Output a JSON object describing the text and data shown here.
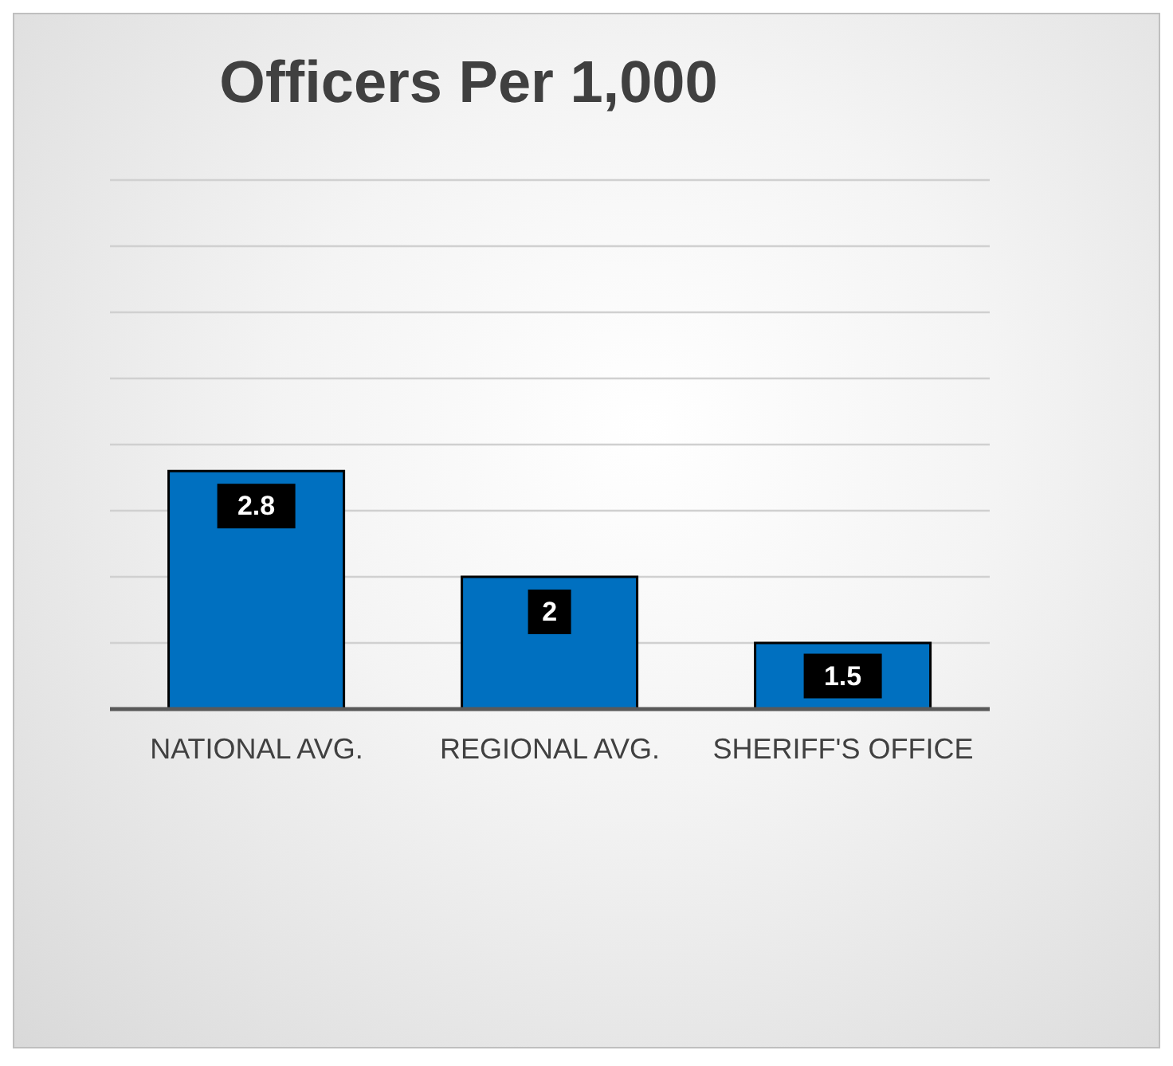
{
  "chart_data": {
    "type": "bar",
    "title": "Officers Per 1,000",
    "categories": [
      "NATIONAL AVG.",
      "REGIONAL AVG.",
      "SHERIFF'S OFFICE"
    ],
    "values": [
      2.8,
      2,
      1.5
    ],
    "color": "#0070c0",
    "ylim": [
      1,
      5
    ],
    "yticks": [
      {
        "value": 1,
        "label": null
      },
      {
        "value": 1.5,
        "label": null
      },
      {
        "value": 2,
        "label": null
      },
      {
        "value": 2.5,
        "label": null
      },
      {
        "value": 3,
        "label": null
      },
      {
        "value": 3.5,
        "label": null
      },
      {
        "value": 4,
        "label": null
      },
      {
        "value": 4.5,
        "label": null
      },
      {
        "value": 5,
        "label": null
      }
    ],
    "tick_labels": "x",
    "grid": "y",
    "data_labels": true
  }
}
